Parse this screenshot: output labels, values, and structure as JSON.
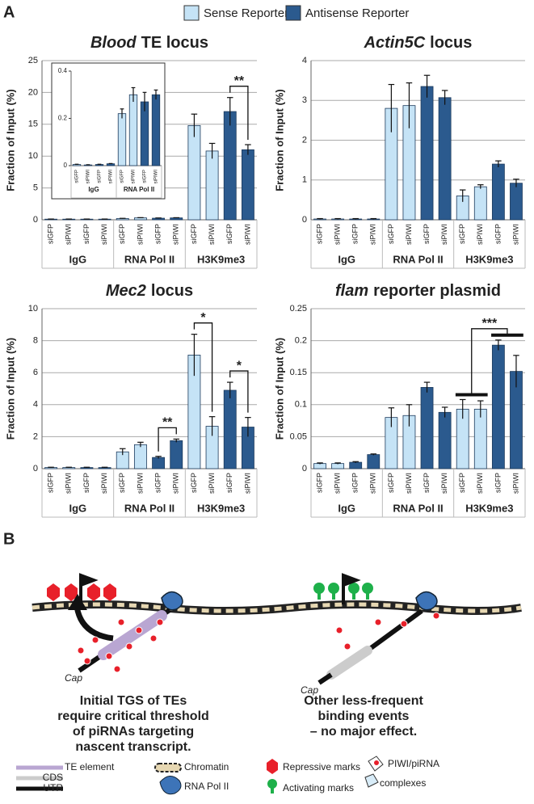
{
  "panel_a": "A",
  "panel_b": "B",
  "chart_data": [
    {
      "type": "bar",
      "title_italic": "Blood",
      "title": "TE locus",
      "ylabel": "Fraction of Input (%)",
      "categories": [
        "siGFP",
        "siPIWI",
        "siGFP",
        "siPIWI",
        "siGFP",
        "siPIWI",
        "siGFP",
        "siPIWI",
        "siGFP",
        "siPIWI",
        "siGFP",
        "siPIWI"
      ],
      "groups": [
        "IgG",
        "RNA Pol II",
        "H3K9me3"
      ],
      "series": [
        {
          "name": "Sense Reporter",
          "color": "#c5e3f6",
          "values": [
            0.1,
            0.1,
            null,
            null,
            0.2,
            0.3,
            null,
            null,
            14.8,
            10.8,
            null,
            null
          ],
          "errors": [
            0.02,
            0.02,
            null,
            null,
            0.03,
            0.04,
            null,
            null,
            1.8,
            1.2,
            null,
            null
          ]
        },
        {
          "name": "Antisense Reporter",
          "color": "#2b5a8e",
          "values": [
            null,
            null,
            0.1,
            0.1,
            null,
            null,
            0.25,
            0.3,
            null,
            null,
            17,
            11
          ],
          "errors": [
            null,
            null,
            0.02,
            0.02,
            null,
            null,
            0.04,
            0.03,
            null,
            null,
            2.2,
            0.8
          ]
        }
      ],
      "ylim": [
        0,
        25
      ],
      "yticks": [
        0,
        5,
        10,
        15,
        20,
        25
      ],
      "grid": true,
      "annotations": [
        {
          "text": "**"
        }
      ],
      "inset": {
        "categories": [
          "siGFP",
          "siPIWI",
          "siGFP",
          "siPIWI",
          "siGFP",
          "siPIWI",
          "siGFP",
          "siPIWI"
        ],
        "groups": [
          "IgG",
          "RNA Pol II"
        ],
        "series": [
          {
            "color": "#c5e3f6",
            "values": [
              0.005,
              0.003,
              null,
              null,
              0.22,
              0.3,
              null,
              null
            ],
            "errors": [
              0.001,
              0.001,
              null,
              null,
              0.02,
              0.03,
              null,
              null
            ]
          },
          {
            "color": "#2b5a8e",
            "values": [
              null,
              null,
              0.005,
              0.008,
              null,
              null,
              0.27,
              0.3
            ],
            "errors": [
              null,
              null,
              0.001,
              0.001,
              null,
              null,
              0.04,
              0.02
            ]
          }
        ],
        "ylim": [
          0,
          0.4
        ],
        "yticks": [
          0,
          0.2,
          0.4
        ],
        "grid": false
      }
    },
    {
      "type": "bar",
      "title_italic": "Actin5C",
      "title": "locus",
      "ylabel": "Fraction of Input (%)",
      "categories": [
        "siGFP",
        "siPIWI",
        "siGFP",
        "siPIWI",
        "siGFP",
        "siPIWI",
        "siGFP",
        "siPIWI",
        "siGFP",
        "siPIWI",
        "siGFP",
        "siPIWI"
      ],
      "groups": [
        "IgG",
        "RNA Pol II",
        "H3K9me3"
      ],
      "series": [
        {
          "color": "#c5e3f6",
          "values": [
            0.02,
            0.02,
            null,
            null,
            2.8,
            2.87,
            null,
            null,
            0.6,
            0.83,
            null,
            null
          ],
          "errors": [
            0.01,
            0.01,
            null,
            null,
            0.6,
            0.57,
            null,
            null,
            0.15,
            0.05,
            null,
            null
          ]
        },
        {
          "color": "#2b5a8e",
          "values": [
            null,
            null,
            0.02,
            0.02,
            null,
            null,
            3.35,
            3.07,
            null,
            null,
            1.4,
            0.92
          ],
          "errors": [
            null,
            null,
            0.01,
            0.01,
            null,
            null,
            0.28,
            0.18,
            null,
            null,
            0.08,
            0.1
          ]
        }
      ],
      "ylim": [
        0,
        4
      ],
      "yticks": [
        0,
        1,
        2,
        3,
        4
      ],
      "grid": true,
      "annotations": []
    },
    {
      "type": "bar",
      "title_italic": "Mec2",
      "title": "locus",
      "ylabel": "Fraction of Input (%)",
      "categories": [
        "siGFP",
        "siPIWI",
        "siGFP",
        "siPIWI",
        "siGFP",
        "siPIWI",
        "siGFP",
        "siPIWI",
        "siGFP",
        "siPIWI",
        "siGFP",
        "siPIWI"
      ],
      "groups": [
        "IgG",
        "RNA Pol II",
        "H3K9me3"
      ],
      "series": [
        {
          "color": "#c5e3f6",
          "values": [
            0.07,
            0.07,
            null,
            null,
            1.05,
            1.5,
            null,
            null,
            7.1,
            2.65,
            null,
            null
          ],
          "errors": [
            0.02,
            0.02,
            null,
            null,
            0.2,
            0.15,
            null,
            null,
            1.3,
            0.6,
            null,
            null
          ]
        },
        {
          "color": "#2b5a8e",
          "values": [
            null,
            null,
            0.07,
            0.07,
            null,
            null,
            0.7,
            1.75,
            null,
            null,
            4.9,
            2.6
          ],
          "errors": [
            null,
            null,
            0.02,
            0.02,
            null,
            null,
            0.07,
            0.1,
            null,
            null,
            0.5,
            0.6
          ]
        }
      ],
      "ylim": [
        0,
        10
      ],
      "yticks": [
        0,
        2,
        4,
        6,
        8,
        10
      ],
      "grid": true,
      "annotations": [
        {
          "text": "**"
        },
        {
          "text": "*"
        },
        {
          "text": "*"
        }
      ]
    },
    {
      "type": "bar",
      "title_italic": "flam",
      "title": "reporter plasmid",
      "ylabel": "Fraction of Input (%)",
      "categories": [
        "siGFP",
        "siPIWI",
        "siGFP",
        "siPIWI",
        "siGFP",
        "siPIWI",
        "siGFP",
        "siPIWI",
        "siGFP",
        "siPIWI",
        "siGFP",
        "siPIWI"
      ],
      "groups": [
        "IgG",
        "RNA Pol II",
        "H3K9me3"
      ],
      "series": [
        {
          "color": "#c5e3f6",
          "values": [
            0.008,
            0.008,
            null,
            null,
            0.08,
            0.083,
            null,
            null,
            0.093,
            0.093,
            null,
            null
          ],
          "errors": [
            0.001,
            0.001,
            null,
            null,
            0.015,
            0.017,
            null,
            null,
            0.015,
            0.013,
            null,
            null
          ]
        },
        {
          "color": "#2b5a8e",
          "values": [
            null,
            null,
            0.01,
            0.022,
            null,
            null,
            0.127,
            0.088,
            null,
            null,
            0.193,
            0.152
          ],
          "errors": [
            null,
            null,
            0.001,
            0.001,
            null,
            null,
            0.008,
            0.008,
            null,
            null,
            0.008,
            0.025
          ]
        }
      ],
      "ylim": [
        0,
        0.25
      ],
      "yticks": [
        0,
        0.05,
        0.1,
        0.15,
        0.2,
        0.25
      ],
      "grid": true,
      "annotations": [
        {
          "text": "***"
        }
      ]
    }
  ],
  "diagram": {
    "cap_labels": [
      "Cap",
      "Cap"
    ],
    "captions": [
      [
        "Initial TGS of TEs",
        "require critical threshold",
        "of piRNAs targeting",
        "nascent  transcript."
      ],
      [
        "Other less-frequent",
        "binding events",
        "– no major effect."
      ]
    ],
    "legend": [
      "TE element",
      "CDS",
      "UTR",
      "Chromatin",
      "RNA Pol II",
      "Repressive marks",
      "Activating marks",
      "PIWI/piRNA",
      "complexes"
    ]
  }
}
